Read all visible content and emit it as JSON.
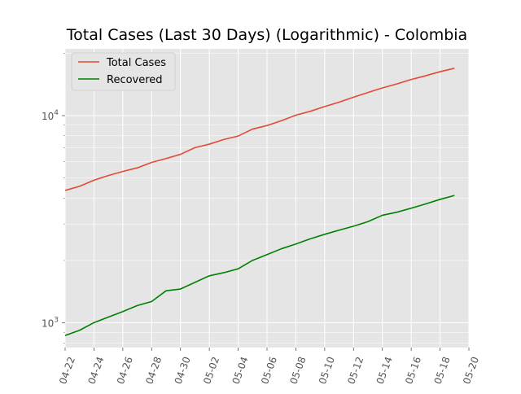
{
  "chart_data": {
    "type": "line",
    "title": "Total Cases (Last 30 Days) (Logarithmic) - Colombia",
    "xlabel": "",
    "ylabel": "",
    "y_scale": "log",
    "ylim": [
      760,
      21000
    ],
    "xlim": [
      "2020-04-22",
      "2020-05-20"
    ],
    "x_tick_labels": [
      "04-22",
      "04-24",
      "04-26",
      "04-28",
      "04-30",
      "05-02",
      "05-04",
      "05-06",
      "05-08",
      "05-10",
      "05-12",
      "05-14",
      "05-16",
      "05-18",
      "05-20"
    ],
    "y_tick_labels": [
      {
        "value": 1000,
        "base": "10",
        "exp": "3"
      },
      {
        "value": 10000,
        "base": "10",
        "exp": "4"
      }
    ],
    "grid": true,
    "legend_position": "top-left",
    "x": [
      "2020-04-22",
      "2020-04-23",
      "2020-04-24",
      "2020-04-25",
      "2020-04-26",
      "2020-04-27",
      "2020-04-28",
      "2020-04-29",
      "2020-04-30",
      "2020-05-01",
      "2020-05-02",
      "2020-05-03",
      "2020-05-04",
      "2020-05-05",
      "2020-05-06",
      "2020-05-07",
      "2020-05-08",
      "2020-05-09",
      "2020-05-10",
      "2020-05-11",
      "2020-05-12",
      "2020-05-13",
      "2020-05-14",
      "2020-05-15",
      "2020-05-16",
      "2020-05-17",
      "2020-05-18",
      "2020-05-19"
    ],
    "series": [
      {
        "name": "Total Cases",
        "color": "#e24a33",
        "values": [
          4356,
          4561,
          4881,
          5142,
          5379,
          5597,
          5949,
          6207,
          6507,
          7006,
          7285,
          7668,
          7973,
          8613,
          8959,
          9456,
          10051,
          10495,
          11063,
          11613,
          12272,
          12930,
          13610,
          14216,
          14939,
          15574,
          16295,
          16935
        ]
      },
      {
        "name": "Recovered",
        "color": "#008000",
        "values": [
          869,
          921,
          1003,
          1067,
          1134,
          1212,
          1268,
          1429,
          1457,
          1569,
          1687,
          1747,
          1824,
          2003,
          2136,
          2279,
          2403,
          2544,
          2676,
          2801,
          2928,
          3081,
          3306,
          3420,
          3575,
          3751,
          3943,
          4118
        ]
      }
    ]
  }
}
